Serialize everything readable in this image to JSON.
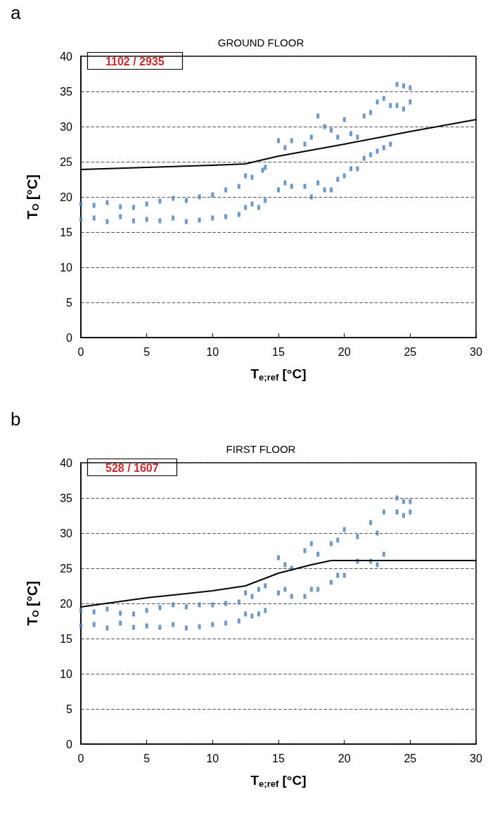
{
  "chart_data": [
    {
      "type": "scatter",
      "title": "GROUND FLOOR",
      "xlabel": "T$_{e;ref}$ [°C]",
      "ylabel": "T$_{O}$ [°C]",
      "annotations": [
        "a",
        "1102 / 2935"
      ],
      "xlim": [
        0,
        30
      ],
      "xticks": [
        0,
        5,
        10,
        15,
        20,
        25,
        30
      ],
      "ylim": [
        0,
        40
      ],
      "yticks": [
        0,
        5,
        10,
        15,
        20,
        25,
        30,
        35,
        40
      ],
      "grid": "y",
      "marker": "square",
      "series": [
        {
          "color": "#4a7ebb",
          "x": [
            0,
            0,
            1,
            1,
            2,
            2,
            3,
            3,
            4,
            4,
            5,
            5,
            6,
            6,
            7,
            7,
            8,
            8,
            9,
            9,
            10,
            10,
            11,
            11,
            12,
            12,
            12.5,
            12.5,
            13,
            13,
            13.5,
            13.8,
            14,
            14,
            15,
            15,
            15.5,
            15.5,
            16,
            16,
            17,
            17,
            17.5,
            17.5,
            18,
            18,
            18.5,
            18.5,
            19,
            19,
            19.5,
            19.5,
            20,
            20,
            20.5,
            20.5,
            21,
            21,
            21.5,
            21.5,
            22,
            22,
            22.5,
            22.5,
            23,
            23,
            23.5,
            23.5,
            24,
            24,
            24.5,
            24.5,
            25,
            25
          ],
          "values": [
            16.8,
            19,
            17,
            18.8,
            16.5,
            19.2,
            17.2,
            18.6,
            16.6,
            18.5,
            16.8,
            19,
            16.6,
            19.4,
            17,
            19.8,
            16.5,
            19.5,
            16.7,
            20,
            17,
            20.3,
            17.2,
            21,
            17.5,
            21.5,
            18.5,
            23,
            19,
            22.8,
            18.5,
            23.8,
            19.5,
            24.2,
            21,
            28,
            22,
            27,
            21.5,
            28,
            21.5,
            27.5,
            20,
            28.5,
            22,
            31.5,
            21,
            30,
            21,
            29.5,
            22.5,
            28.5,
            23,
            31,
            24,
            29,
            24,
            28.5,
            25.5,
            31.5,
            26,
            32,
            26.5,
            33.5,
            27,
            34,
            27.5,
            33,
            33,
            36,
            32.5,
            35.8,
            33.5,
            35.5
          ]
        },
        {
          "type": "line",
          "color": "#000000",
          "line_style": "solid",
          "marker": "none",
          "x": [
            0,
            5,
            10,
            12.5,
            15,
            20,
            25,
            30
          ],
          "values": [
            23.9,
            24.2,
            24.5,
            24.7,
            25.8,
            27.5,
            29.3,
            31
          ]
        }
      ]
    },
    {
      "type": "scatter",
      "title": "FIRST FLOOR",
      "xlabel": "T$_{e;ref}$ [°C]",
      "ylabel": "T$_{O}$ [°C]",
      "annotations": [
        "b",
        "528 / 1607"
      ],
      "xlim": [
        0,
        30
      ],
      "xticks": [
        0,
        5,
        10,
        15,
        20,
        25,
        30
      ],
      "ylim": [
        0,
        40
      ],
      "yticks": [
        0,
        5,
        10,
        15,
        20,
        25,
        30,
        35,
        40
      ],
      "grid": "y",
      "marker": "square",
      "series": [
        {
          "color": "#4a7ebb",
          "x": [
            0,
            0,
            1,
            1,
            2,
            2,
            3,
            3,
            4,
            4,
            5,
            5,
            6,
            6,
            7,
            7,
            8,
            8,
            9,
            9,
            10,
            10,
            11,
            11,
            12,
            12,
            12.5,
            12.5,
            13,
            13,
            13.5,
            13.5,
            14,
            14,
            15,
            15,
            15.5,
            15.5,
            16,
            16,
            17,
            17,
            17.5,
            17.5,
            18,
            18,
            19,
            19,
            19.5,
            19.5,
            20,
            20,
            21,
            21,
            22,
            22,
            22.5,
            22.5,
            23,
            23,
            24,
            24,
            24.5,
            24.5,
            25,
            25
          ],
          "values": [
            16.8,
            19,
            17,
            18.8,
            16.5,
            19.2,
            17.2,
            18.6,
            16.6,
            18.5,
            16.8,
            19,
            16.6,
            19.4,
            17,
            19.8,
            16.5,
            19.5,
            16.7,
            19.8,
            17,
            19.8,
            17.2,
            20,
            17.5,
            20.2,
            18.5,
            21.5,
            18.2,
            21,
            18.5,
            22,
            19,
            22.5,
            21.5,
            26.5,
            22,
            25.5,
            21,
            25,
            21,
            27.5,
            22,
            28.5,
            22,
            27,
            23,
            28.5,
            24,
            29,
            24,
            30.5,
            26,
            29.5,
            26,
            31.5,
            25.5,
            30,
            27,
            33,
            33,
            35,
            32.5,
            34.5,
            33,
            34.5
          ]
        },
        {
          "type": "line",
          "color": "#000000",
          "line_style": "solid",
          "marker": "none",
          "x": [
            0,
            5,
            10,
            12.5,
            15,
            17.5,
            19,
            30
          ],
          "values": [
            19.5,
            20.8,
            21.8,
            22.5,
            24.3,
            25.5,
            26.1,
            26.1
          ]
        }
      ]
    }
  ]
}
